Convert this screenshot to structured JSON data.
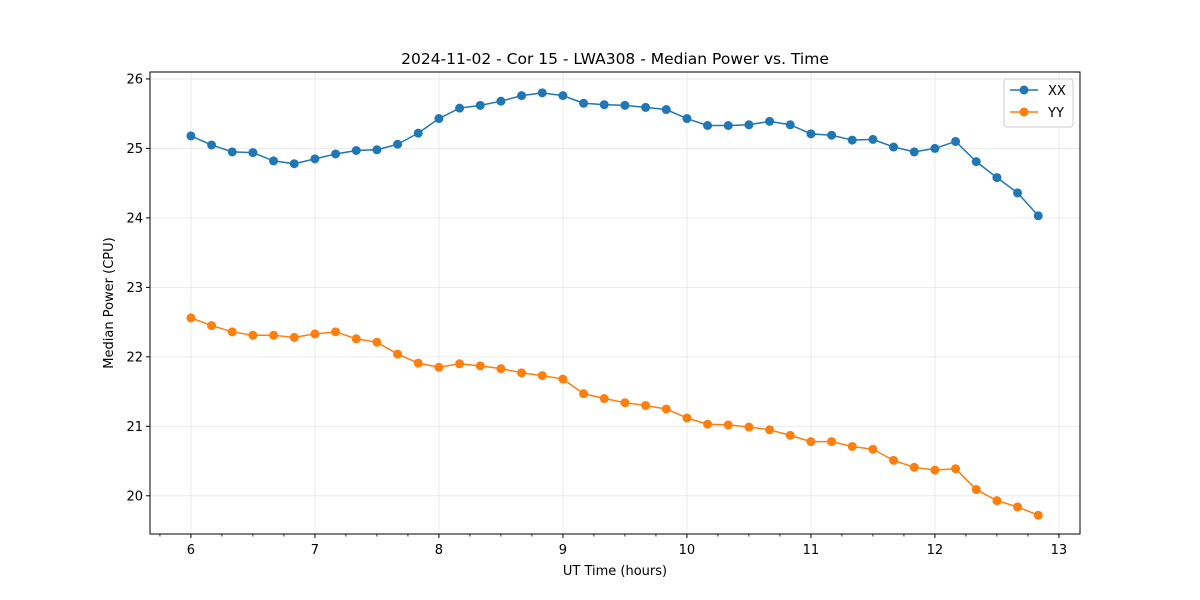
{
  "chart_data": {
    "type": "line",
    "title": "2024-11-02 - Cor 15 - LWA308 - Median Power vs. Time",
    "xlabel": "UT Time (hours)",
    "ylabel": "Median Power (CPU)",
    "xlim": [
      5.67,
      13.17
    ],
    "ylim": [
      19.45,
      26.1
    ],
    "xticks": [
      6,
      7,
      8,
      9,
      10,
      11,
      12,
      13
    ],
    "xtick_labels": [
      "6",
      "7",
      "8",
      "9",
      "10",
      "11",
      "12",
      "13"
    ],
    "xminor_ticks": [
      5.75,
      6.25,
      6.5,
      6.75,
      7.25,
      7.5,
      7.75,
      8.25,
      8.5,
      8.75,
      9.25,
      9.5,
      9.75,
      10.25,
      10.5,
      10.75,
      11.25,
      11.5,
      11.75,
      12.25,
      12.5,
      12.75,
      13.0
    ],
    "yticks": [
      20,
      21,
      22,
      23,
      24,
      25,
      26
    ],
    "ytick_labels": [
      "20",
      "21",
      "22",
      "23",
      "24",
      "25",
      "26"
    ],
    "grid": true,
    "legend_position": "top-right",
    "x": [
      6.0,
      6.1667,
      6.3333,
      6.5,
      6.6667,
      6.8333,
      7.0,
      7.1667,
      7.3333,
      7.5,
      7.6667,
      7.8333,
      8.0,
      8.1667,
      8.3333,
      8.5,
      8.6667,
      8.8333,
      9.0,
      9.1667,
      9.3333,
      9.5,
      9.6667,
      9.8333,
      10.0,
      10.1667,
      10.3333,
      10.5,
      10.6667,
      10.8333,
      11.0,
      11.1667,
      11.3333,
      11.5,
      11.6667,
      11.8333,
      12.0,
      12.1667,
      12.3333,
      12.5,
      12.6667,
      12.8333
    ],
    "series": [
      {
        "name": "XX",
        "color": "#1f77b4",
        "values": [
          25.18,
          25.05,
          24.95,
          24.94,
          24.82,
          24.78,
          24.85,
          24.92,
          24.97,
          24.98,
          25.06,
          25.22,
          25.43,
          25.58,
          25.62,
          25.68,
          25.76,
          25.8,
          25.76,
          25.65,
          25.63,
          25.62,
          25.59,
          25.56,
          25.43,
          25.33,
          25.33,
          25.34,
          25.39,
          25.34,
          25.21,
          25.19,
          25.12,
          25.13,
          25.02,
          24.95,
          25.0,
          25.1,
          24.81,
          24.58,
          24.36,
          24.03
        ]
      },
      {
        "name": "YY",
        "color": "#ff7f0e",
        "values": [
          22.56,
          22.45,
          22.36,
          22.31,
          22.31,
          22.28,
          22.33,
          22.36,
          22.26,
          22.21,
          22.04,
          21.91,
          21.85,
          21.9,
          21.87,
          21.83,
          21.77,
          21.73,
          21.68,
          21.47,
          21.4,
          21.34,
          21.3,
          21.25,
          21.12,
          21.03,
          21.02,
          20.99,
          20.95,
          20.87,
          20.78,
          20.78,
          20.71,
          20.67,
          20.51,
          20.41,
          20.37,
          20.39,
          20.09,
          19.93,
          19.84,
          19.72
        ]
      }
    ]
  }
}
